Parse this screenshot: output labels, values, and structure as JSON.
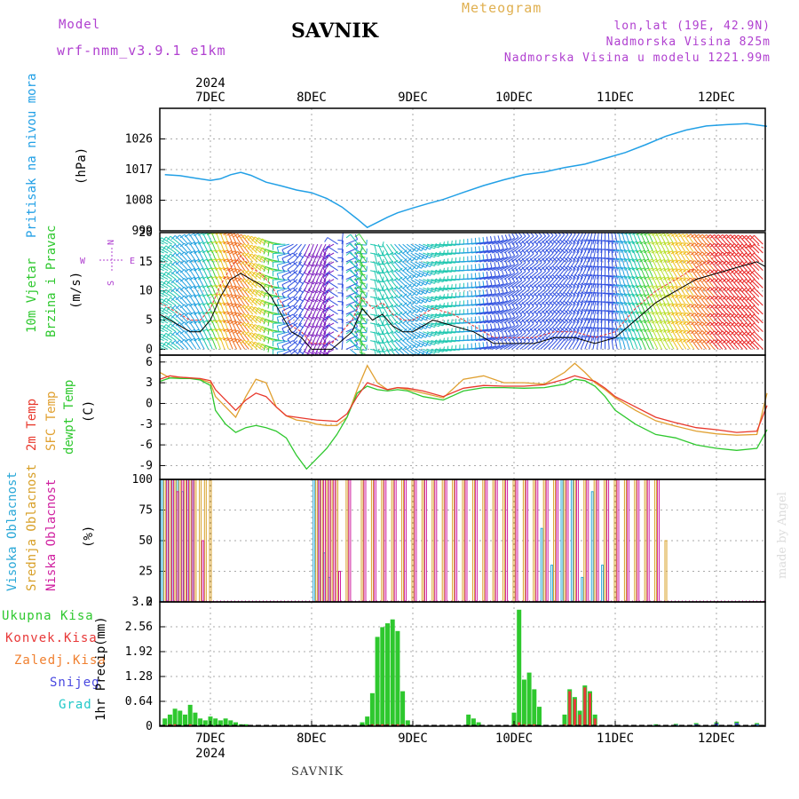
{
  "header": {
    "model_label": "Model",
    "model_name": "wrf-nmm_v3.9.1 e1km",
    "title": "SAVNIK",
    "meteogram_label": "Meteogram",
    "lonlat": "lon,lat (19E, 42.9N)",
    "elevation": "Nadmorska Visina 825m",
    "model_elevation": "Nadmorska Visina u modelu 1221.99m"
  },
  "footer": {
    "location": "SAVNIK",
    "watermark": "made by Angel"
  },
  "colors": {
    "pressure": "#22a0e6",
    "temp2m": "#e8382c",
    "sfc_temp": "#e0a030",
    "dewpoint": "#2ec82e",
    "cloud_high": "#2aa8d8",
    "cloud_mid": "#d8a028",
    "cloud_low": "#d020a0",
    "precip_total": "#2ec82e",
    "precip_conv": "#e83838",
    "precip_frozen": "#f08030",
    "precip_snow": "#4848e0",
    "precip_graupel": "#20c8c8",
    "label_purple": "#b040d0",
    "label_gold": "#e0b050"
  },
  "chart_data": [
    {
      "id": "pressure",
      "type": "line",
      "ylabel_parts": [
        "Pritisak na nivou mora",
        "(hPa)"
      ],
      "ylim": [
        999,
        1035
      ],
      "yticks": [
        "999",
        "1008",
        "1017",
        "1026"
      ],
      "x_unit": "days from 7DEC 00UTC",
      "x_categories": [
        "7DEC",
        "8DEC",
        "9DEC",
        "10DEC",
        "11DEC",
        "12DEC"
      ],
      "x_year": "2024",
      "x": [
        -0.45,
        -0.3,
        -0.15,
        0.0,
        0.1,
        0.2,
        0.3,
        0.4,
        0.55,
        0.7,
        0.85,
        1.0,
        1.15,
        1.3,
        1.45,
        1.55,
        1.65,
        1.75,
        1.85,
        2.0,
        2.15,
        2.3,
        2.5,
        2.7,
        2.9,
        3.1,
        3.3,
        3.5,
        3.7,
        3.9,
        4.1,
        4.3,
        4.5,
        4.7,
        4.9,
        5.1,
        5.3,
        5.5
      ],
      "values": [
        1015.5,
        1015.2,
        1014.5,
        1013.8,
        1014.3,
        1015.5,
        1016.2,
        1015.3,
        1013.3,
        1012.2,
        1011.0,
        1010.2,
        1008.5,
        1006.0,
        1002.5,
        1000.0,
        1001.5,
        1003.0,
        1004.3,
        1005.7,
        1007.0,
        1008.2,
        1010.3,
        1012.3,
        1014.0,
        1015.5,
        1016.3,
        1017.6,
        1018.6,
        1020.3,
        1022.0,
        1024.3,
        1026.8,
        1028.6,
        1029.8,
        1030.2,
        1030.5,
        1029.7
      ]
    },
    {
      "id": "wind",
      "type": "line",
      "ylabel_parts": [
        "10m Vjetar",
        "Brzina i Pravac",
        "(m/s)"
      ],
      "compass": {
        "north": "N",
        "east": "E",
        "west": "W",
        "south": "S"
      },
      "ylim": [
        -1,
        20
      ],
      "yticks": [
        "0",
        "5",
        "10",
        "15",
        "20"
      ],
      "x": [
        -0.5,
        -0.4,
        -0.3,
        -0.2,
        -0.1,
        0.0,
        0.1,
        0.2,
        0.3,
        0.4,
        0.5,
        0.6,
        0.7,
        0.8,
        0.9,
        1.0,
        1.2,
        1.4,
        1.5,
        1.6,
        1.7,
        1.8,
        1.9,
        2.0,
        2.2,
        2.4,
        2.6,
        2.8,
        3.0,
        3.2,
        3.4,
        3.6,
        3.8,
        4.0,
        4.2,
        4.4,
        4.6,
        4.8,
        5.0,
        5.2,
        5.4,
        5.5
      ],
      "series": [
        {
          "values": [
            6,
            5,
            4,
            3,
            3,
            5,
            9,
            12,
            13,
            12,
            11,
            9,
            6,
            3,
            2,
            0,
            0,
            3,
            7,
            5,
            6,
            4,
            3,
            3,
            5,
            4,
            3,
            1,
            1,
            1,
            2,
            2,
            1,
            2,
            5,
            8,
            10,
            12,
            13,
            14,
            15,
            14
          ]
        },
        {
          "values": [
            8,
            7,
            6,
            5,
            5,
            7,
            11,
            14,
            16,
            14,
            13,
            11,
            8,
            4,
            3,
            1,
            1,
            5,
            9,
            7,
            8,
            6,
            5,
            5,
            7,
            6,
            4,
            2,
            2,
            2,
            3,
            3,
            2,
            3,
            7,
            10,
            12,
            14,
            16,
            17,
            18,
            17
          ]
        }
      ],
      "barbs_direction_deg": [
        250,
        240,
        230,
        220,
        210,
        205,
        200,
        200,
        210,
        220,
        230,
        240,
        260,
        290,
        320,
        340,
        330,
        20,
        350,
        10,
        30,
        40,
        50,
        60,
        80,
        90,
        100,
        110,
        130,
        130,
        140,
        150,
        170,
        190,
        200,
        205,
        210,
        215,
        220,
        220,
        225,
        225
      ]
    },
    {
      "id": "temperature",
      "type": "line",
      "ylabel_parts": [
        "2m Temp",
        "SFC Temp",
        "dewpt Temp",
        "(C)"
      ],
      "ylim": [
        -11,
        7
      ],
      "yticks": [
        "-9",
        "-6",
        "-3",
        "0",
        "3",
        "6"
      ],
      "x": [
        -0.5,
        -0.4,
        -0.3,
        -0.2,
        -0.1,
        0.0,
        0.05,
        0.15,
        0.25,
        0.35,
        0.45,
        0.55,
        0.65,
        0.75,
        0.85,
        0.95,
        1.05,
        1.15,
        1.25,
        1.35,
        1.45,
        1.55,
        1.65,
        1.75,
        1.85,
        1.95,
        2.1,
        2.3,
        2.5,
        2.7,
        2.9,
        3.1,
        3.3,
        3.5,
        3.6,
        3.7,
        3.8,
        3.9,
        4.0,
        4.2,
        4.4,
        4.6,
        4.8,
        5.0,
        5.2,
        5.4,
        5.5
      ],
      "series": [
        {
          "values": [
            3.5,
            4.0,
            3.8,
            3.7,
            3.6,
            3.3,
            2.0,
            0.5,
            -1.0,
            0.5,
            1.5,
            1.0,
            -0.5,
            -1.8,
            -2.0,
            -2.2,
            -2.4,
            -2.5,
            -2.6,
            -1.5,
            1.0,
            3.0,
            2.5,
            2.0,
            2.3,
            2.2,
            1.8,
            1.0,
            2.2,
            2.6,
            2.5,
            2.5,
            2.7,
            3.5,
            4.0,
            3.6,
            3.2,
            2.2,
            1.0,
            -0.5,
            -2.0,
            -2.8,
            -3.5,
            -3.8,
            -4.2,
            -4.0,
            -0.3
          ]
        },
        {
          "values": [
            4.5,
            3.7,
            3.8,
            3.7,
            3.5,
            3.0,
            1.0,
            -0.5,
            -2.0,
            1.0,
            3.5,
            3.0,
            -0.5,
            -1.8,
            -2.4,
            -2.6,
            -3.0,
            -3.2,
            -3.2,
            -2.0,
            2.0,
            5.5,
            3.0,
            2.0,
            2.3,
            2.0,
            1.5,
            0.8,
            3.5,
            4.0,
            3.0,
            3.0,
            2.8,
            4.5,
            5.8,
            4.5,
            3.0,
            2.0,
            0.8,
            -1.0,
            -2.5,
            -3.3,
            -4.0,
            -4.4,
            -4.6,
            -4.5,
            1.5
          ]
        },
        {
          "values": [
            3.2,
            3.7,
            3.6,
            3.6,
            3.4,
            2.6,
            -1.0,
            -3.0,
            -4.2,
            -3.5,
            -3.2,
            -3.5,
            -4.0,
            -5.0,
            -7.5,
            -9.5,
            -8.0,
            -6.5,
            -4.5,
            -2.0,
            1.5,
            2.5,
            2.0,
            1.8,
            2.0,
            1.8,
            1.0,
            0.5,
            1.8,
            2.3,
            2.3,
            2.2,
            2.3,
            2.8,
            3.5,
            3.3,
            2.5,
            1.0,
            -1.0,
            -3.0,
            -4.5,
            -5.0,
            -6.0,
            -6.5,
            -6.8,
            -6.5,
            -3.8
          ]
        }
      ]
    },
    {
      "id": "clouds",
      "type": "bar",
      "ylabel_parts": [
        "Visoka Oblacnost",
        "Srednja Oblacnost",
        "Niska Oblacnost",
        "(%)"
      ],
      "ylim": [
        0,
        100
      ],
      "yticks": [
        "0",
        "25",
        "50",
        "75",
        "100"
      ],
      "x": [
        -0.45,
        -0.4,
        -0.35,
        -0.3,
        -0.25,
        -0.2,
        -0.15,
        -0.1,
        -0.05,
        0.0,
        1.05,
        1.1,
        1.15,
        1.2,
        1.25,
        1.35,
        1.5,
        1.6,
        1.7,
        1.8,
        1.9,
        2.0,
        2.1,
        2.2,
        2.3,
        2.4,
        2.5,
        2.6,
        2.7,
        2.8,
        2.9,
        3.0,
        3.1,
        3.2,
        3.3,
        3.4,
        3.5,
        3.6,
        3.7,
        3.8,
        3.9,
        4.0,
        4.1,
        4.2,
        4.3,
        4.4,
        4.5
      ],
      "series": [
        {
          "values": [
            100,
            100,
            100,
            100,
            90,
            100,
            100,
            0,
            0,
            0,
            100,
            100,
            40,
            20,
            0,
            0,
            0,
            0,
            0,
            0,
            0,
            0,
            0,
            0,
            0,
            0,
            0,
            0,
            0,
            0,
            0,
            0,
            0,
            0,
            60,
            30,
            100,
            100,
            20,
            90,
            30,
            0,
            0,
            0,
            0,
            0,
            0
          ]
        },
        {
          "values": [
            100,
            100,
            100,
            100,
            100,
            100,
            100,
            100,
            100,
            100,
            100,
            100,
            100,
            100,
            100,
            100,
            100,
            100,
            100,
            100,
            100,
            100,
            100,
            100,
            100,
            100,
            100,
            100,
            100,
            100,
            100,
            100,
            100,
            100,
            100,
            100,
            100,
            100,
            100,
            100,
            100,
            100,
            100,
            100,
            100,
            100,
            50
          ]
        },
        {
          "values": [
            100,
            100,
            90,
            100,
            100,
            100,
            0,
            50,
            0,
            0,
            100,
            100,
            100,
            100,
            25,
            100,
            100,
            100,
            100,
            100,
            100,
            100,
            100,
            100,
            100,
            100,
            100,
            100,
            100,
            100,
            100,
            100,
            100,
            100,
            100,
            100,
            100,
            100,
            100,
            100,
            100,
            100,
            100,
            100,
            100,
            100,
            0
          ]
        }
      ]
    },
    {
      "id": "precip",
      "type": "bar",
      "ylabel_parts": [
        "1hr Precip",
        "(mm)"
      ],
      "legend": [
        "Ukupna Kisa",
        "Konvek.Kisa",
        "Zaledj.Kisa",
        "Snijeg",
        "Grad"
      ],
      "ylim": [
        0,
        3.2
      ],
      "yticks": [
        "0",
        "0.64",
        "1.28",
        "1.92",
        "2.56",
        "3.2"
      ],
      "x": [
        -0.45,
        -0.4,
        -0.35,
        -0.3,
        -0.25,
        -0.2,
        -0.15,
        -0.1,
        -0.05,
        0.0,
        0.05,
        0.1,
        0.15,
        0.2,
        0.25,
        0.3,
        0.35,
        0.4,
        1.5,
        1.55,
        1.6,
        1.65,
        1.7,
        1.75,
        1.8,
        1.85,
        1.9,
        1.95,
        2.55,
        2.6,
        2.65,
        3.0,
        3.05,
        3.1,
        3.15,
        3.2,
        3.25,
        3.5,
        3.55,
        3.6,
        3.65,
        3.7,
        3.75,
        3.8,
        4.4,
        4.6,
        4.8,
        5.0,
        5.2,
        5.4
      ],
      "series": [
        {
          "name": "Ukupna Kisa",
          "values": [
            0.2,
            0.3,
            0.45,
            0.4,
            0.3,
            0.55,
            0.35,
            0.2,
            0.15,
            0.25,
            0.2,
            0.15,
            0.2,
            0.15,
            0.1,
            0.05,
            0.05,
            0.03,
            0.1,
            0.25,
            0.85,
            2.3,
            2.55,
            2.65,
            2.75,
            2.45,
            0.9,
            0.15,
            0.3,
            0.2,
            0.1,
            0.35,
            3.0,
            1.2,
            1.38,
            0.95,
            0.5,
            0.3,
            0.95,
            0.75,
            0.4,
            1.05,
            0.9,
            0.3,
            0.05,
            0.06,
            0.08,
            0.1,
            0.12,
            0.08
          ]
        },
        {
          "name": "Konvek.Kisa",
          "values": [
            0.03,
            0.05,
            0.05,
            0.03,
            0.03,
            0.05,
            0.03,
            0,
            0,
            0.03,
            0,
            0,
            0,
            0,
            0,
            0,
            0,
            0,
            0,
            0.03,
            0.05,
            0.05,
            0.05,
            0.05,
            0.05,
            0.05,
            0.05,
            0.03,
            0.03,
            0,
            0,
            0.05,
            0.1,
            0.05,
            0.05,
            0.05,
            0.03,
            0.05,
            0.9,
            0.7,
            0.3,
            1.0,
            0.85,
            0.2,
            0,
            0,
            0,
            0,
            0,
            0
          ]
        },
        {
          "name": "Zaledj.Kisa",
          "values": [
            0,
            0,
            0,
            0,
            0,
            0,
            0,
            0,
            0,
            0,
            0,
            0,
            0,
            0,
            0,
            0,
            0,
            0,
            0,
            0,
            0,
            0,
            0,
            0,
            0,
            0,
            0,
            0,
            0,
            0,
            0,
            0,
            0,
            0,
            0,
            0,
            0,
            0,
            0,
            0,
            0,
            0,
            0,
            0,
            0,
            0,
            0,
            0,
            0,
            0
          ]
        },
        {
          "name": "Snijeg",
          "values": [
            0,
            0,
            0,
            0,
            0,
            0,
            0,
            0,
            0,
            0,
            0,
            0,
            0,
            0,
            0,
            0,
            0,
            0,
            0,
            0,
            0,
            0,
            0,
            0,
            0,
            0,
            0,
            0,
            0,
            0,
            0,
            0,
            0,
            0,
            0,
            0,
            0,
            0,
            0,
            0,
            0,
            0,
            0,
            0,
            0.03,
            0.04,
            0.05,
            0.07,
            0.08,
            0.05
          ]
        },
        {
          "name": "Grad",
          "values": [
            0,
            0,
            0,
            0,
            0,
            0,
            0,
            0,
            0,
            0,
            0,
            0,
            0,
            0,
            0,
            0,
            0,
            0,
            0,
            0,
            0,
            0,
            0,
            0,
            0,
            0,
            0,
            0,
            0,
            0,
            0,
            0,
            0,
            0,
            0,
            0,
            0,
            0,
            0,
            0,
            0,
            0,
            0,
            0,
            0.02,
            0.02,
            0.03,
            0.03,
            0.04,
            0.03
          ]
        }
      ]
    }
  ]
}
